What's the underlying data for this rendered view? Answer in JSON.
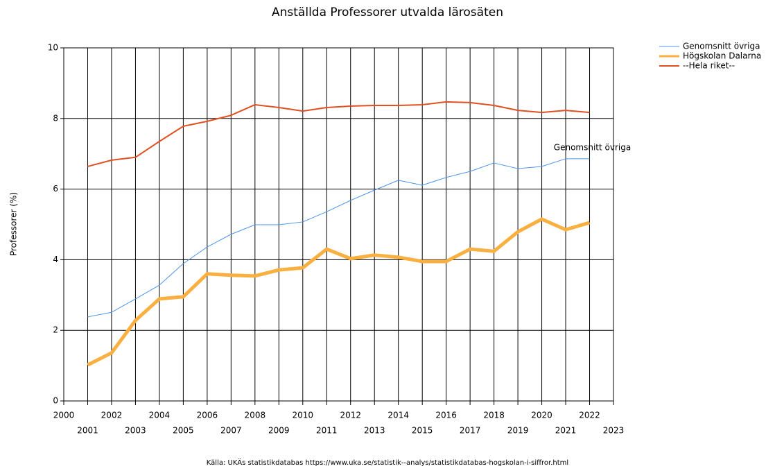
{
  "chart_data": {
    "type": "line",
    "title": "Anställda Professorer utvalda lärosäten",
    "y_label": "Professorer (%)",
    "source": "Källa: UKÄs statistikdatabas https://www.uka.se/statistik--analys/statistikdatabas-hogskolan-i-siffror.html",
    "annotation": "Genomsnitt övriga",
    "x": [
      2001,
      2002,
      2003,
      2004,
      2005,
      2006,
      2007,
      2008,
      2009,
      2010,
      2011,
      2012,
      2013,
      2014,
      2015,
      2016,
      2017,
      2018,
      2019,
      2020,
      2021,
      2022
    ],
    "series": [
      {
        "name": "Genomsnitt övriga",
        "color": "#4d94e8",
        "width": 1,
        "values": [
          2.38,
          2.51,
          2.89,
          3.28,
          3.89,
          4.36,
          4.72,
          4.99,
          4.99,
          5.07,
          5.36,
          5.68,
          5.97,
          6.25,
          6.11,
          6.33,
          6.5,
          6.74,
          6.58,
          6.64,
          6.86,
          6.86
        ]
      },
      {
        "name": "Högskolan Dalarna",
        "color": "#f9b040",
        "width": 5,
        "values": [
          1.02,
          1.36,
          2.28,
          2.89,
          2.95,
          3.6,
          3.56,
          3.54,
          3.71,
          3.77,
          4.3,
          4.03,
          4.13,
          4.07,
          3.95,
          3.95,
          4.3,
          4.24,
          4.79,
          5.15,
          4.85,
          5.05
        ]
      },
      {
        "name": "--Hela riket--",
        "color": "#e05020",
        "width": 2,
        "values": [
          6.64,
          6.82,
          6.9,
          7.35,
          7.78,
          7.92,
          8.09,
          8.39,
          8.31,
          8.21,
          8.31,
          8.35,
          8.37,
          8.37,
          8.39,
          8.47,
          8.45,
          8.37,
          8.23,
          8.17,
          8.23,
          8.17
        ]
      }
    ],
    "xlim": [
      2000,
      2023
    ],
    "xticks": [
      2000,
      2001,
      2002,
      2003,
      2004,
      2005,
      2006,
      2007,
      2008,
      2009,
      2010,
      2011,
      2012,
      2013,
      2014,
      2015,
      2016,
      2017,
      2018,
      2019,
      2020,
      2021,
      2022,
      2023
    ],
    "ylim": [
      0,
      10
    ],
    "yticks": [
      0,
      2,
      4,
      6,
      8,
      10
    ],
    "grid": true,
    "legend": "top-right"
  }
}
